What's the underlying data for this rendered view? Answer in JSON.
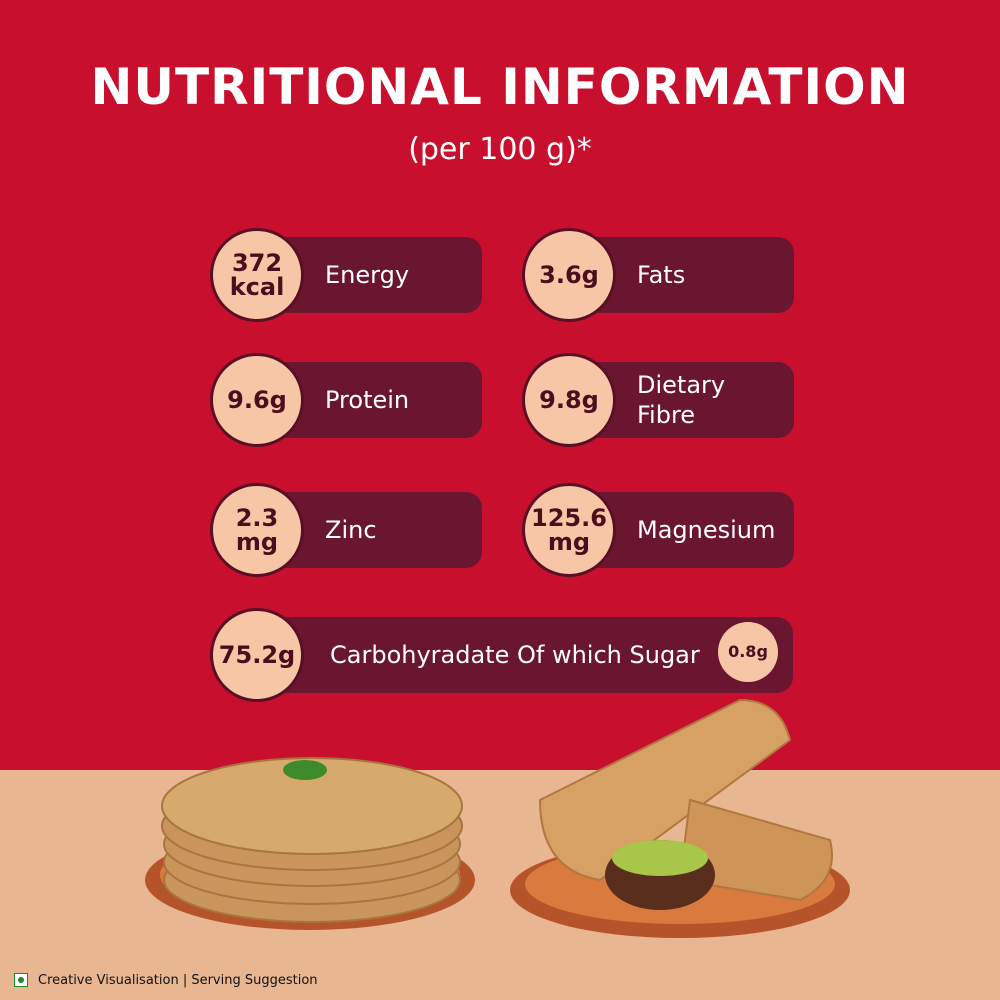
{
  "header": {
    "title": "NUTRITIONAL INFORMATION",
    "subtitle": "(per 100 g)*"
  },
  "items": [
    {
      "value": [
        "372",
        "kcal"
      ],
      "label": [
        "Energy"
      ]
    },
    {
      "value": [
        "3.6g"
      ],
      "label": [
        "Fats"
      ]
    },
    {
      "value": [
        "9.6g"
      ],
      "label": [
        "Protein"
      ]
    },
    {
      "value": [
        "9.8g"
      ],
      "label": [
        "Dietary",
        "Fibre"
      ]
    },
    {
      "value": [
        "2.3",
        "mg"
      ],
      "label": [
        "Zinc"
      ]
    },
    {
      "value": [
        "125.6",
        "mg"
      ],
      "label": [
        "Magnesium"
      ]
    }
  ],
  "carbohydrate": {
    "value": "75.2g",
    "label": "Carbohyradate Of which Sugar",
    "sugar": "0.8g"
  },
  "footer": "Creative Visualisation | Serving Suggestion"
}
